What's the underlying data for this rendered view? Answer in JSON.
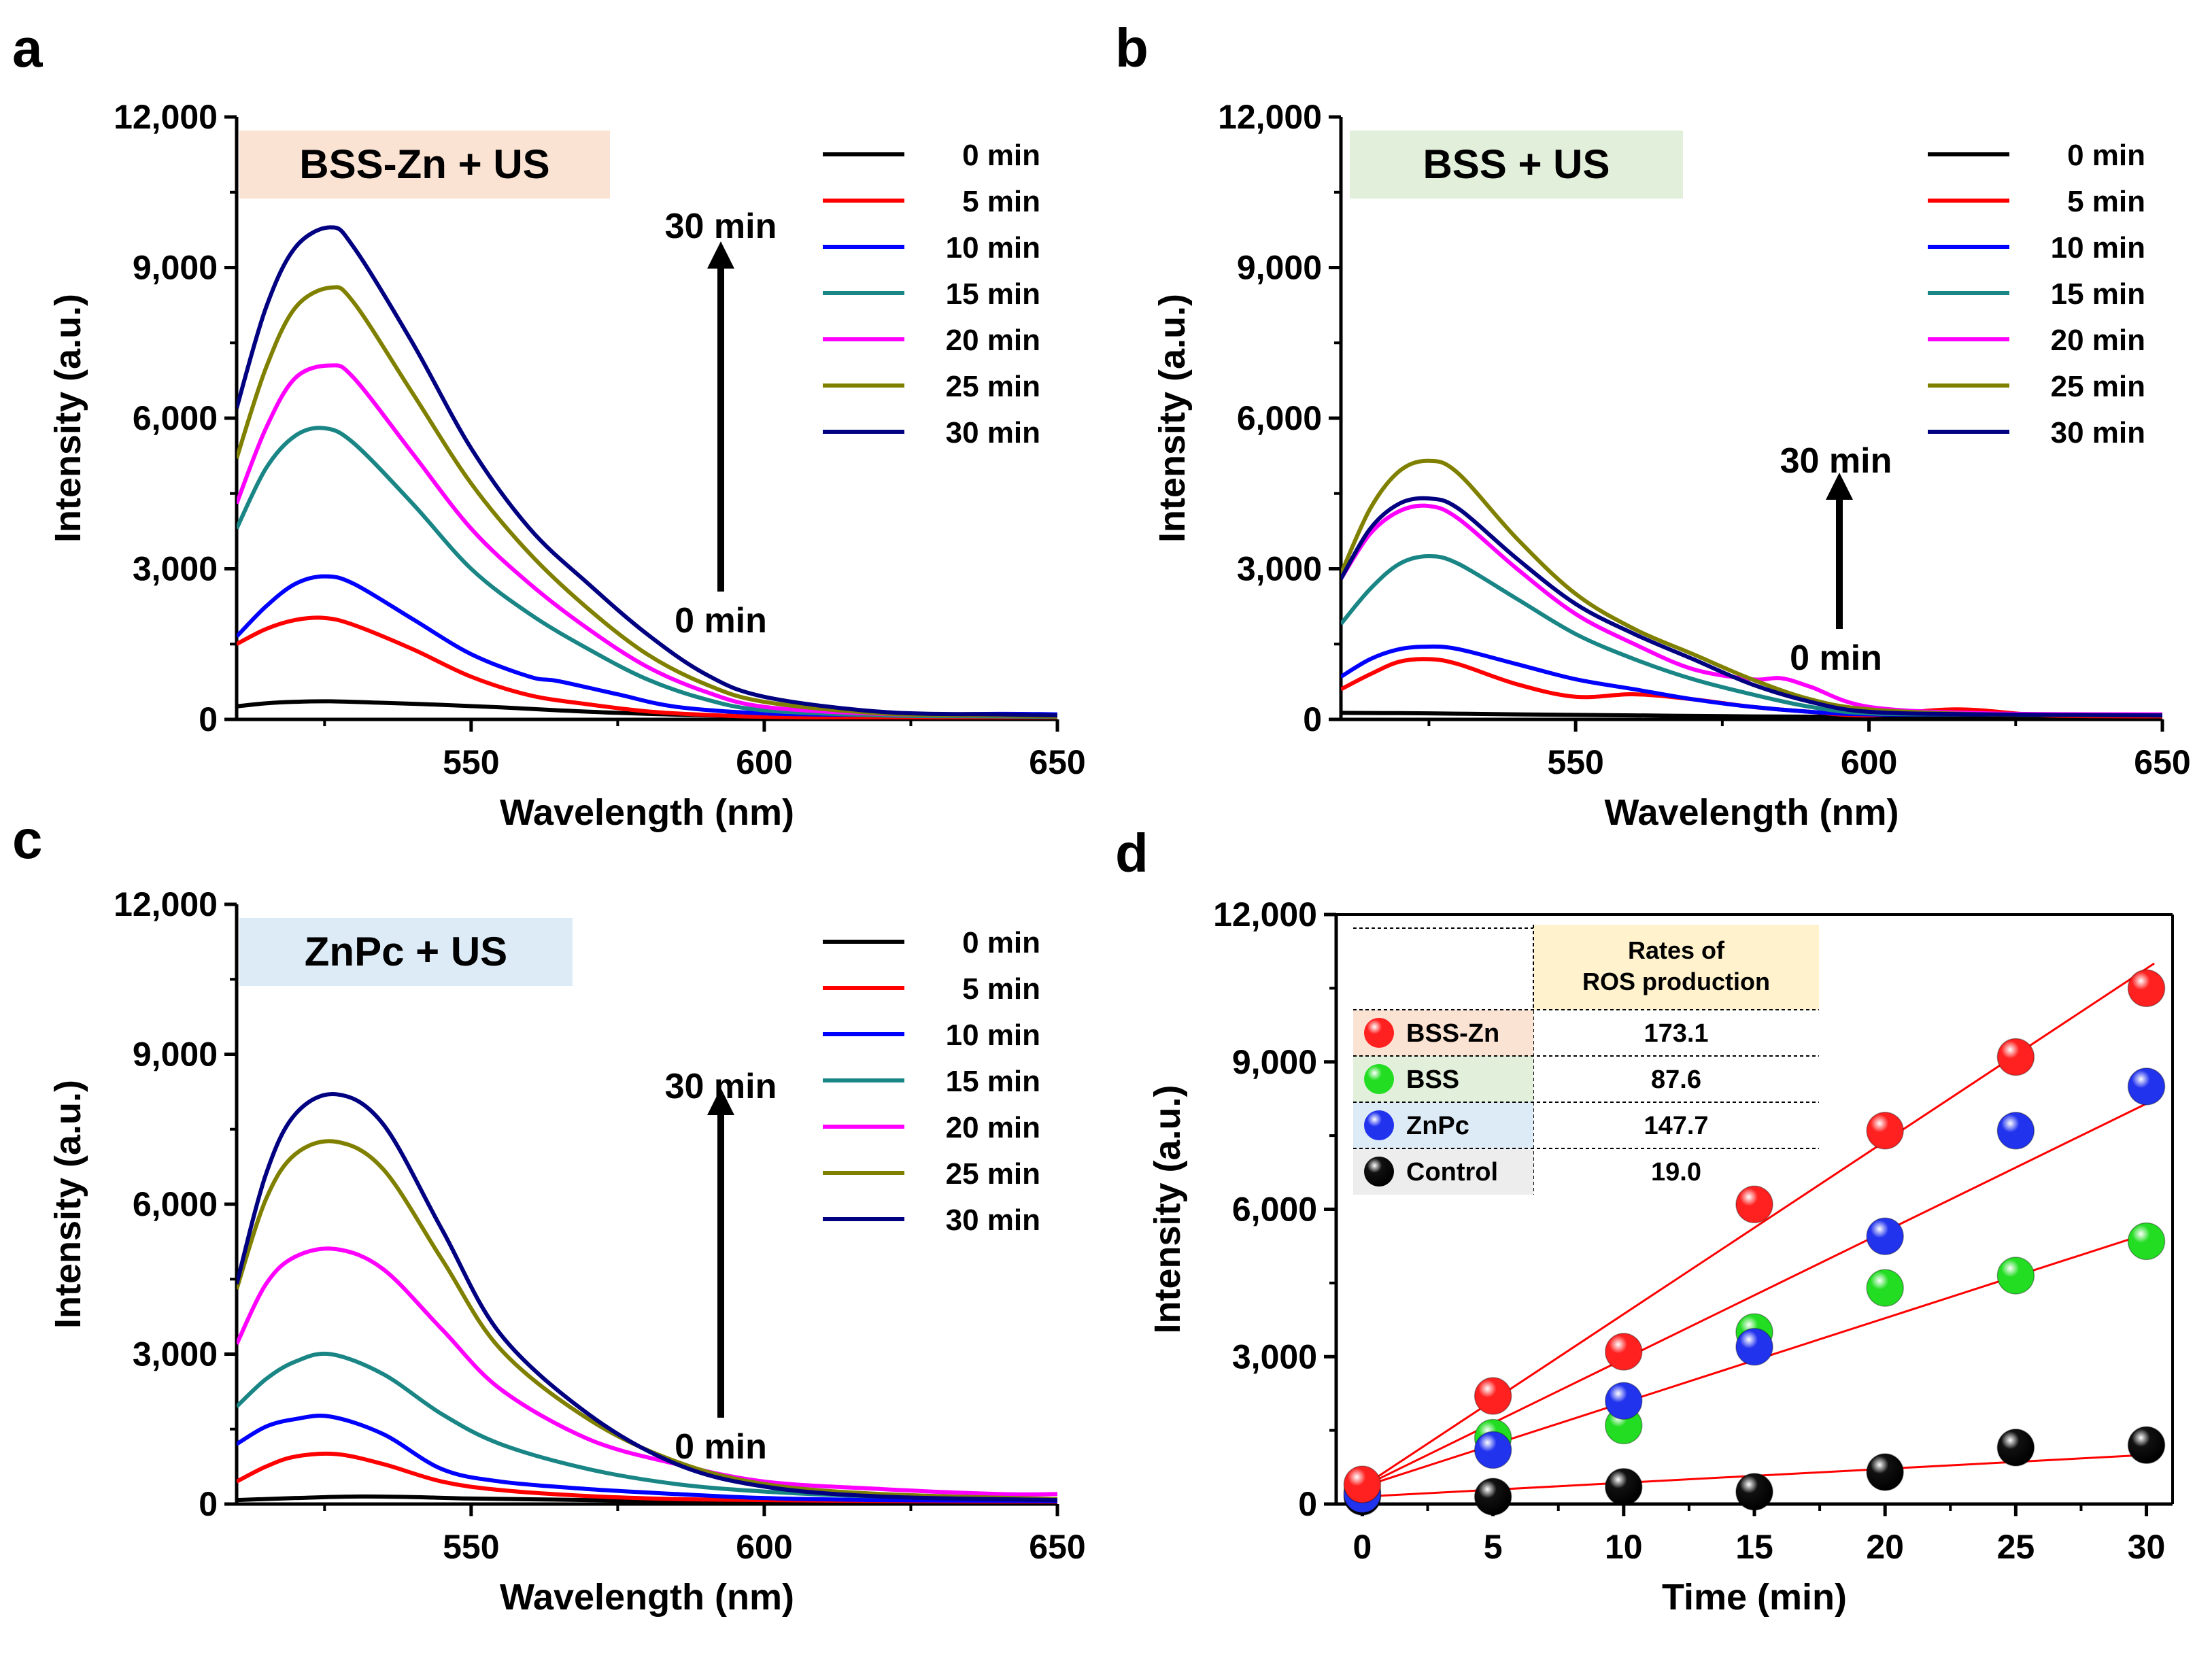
{
  "figure": {
    "panels": [
      "a",
      "b",
      "c",
      "d"
    ]
  },
  "chart_data": [
    {
      "id": "a",
      "type": "line",
      "title": "BSS-Zn + US",
      "title_bg": "#fbe3d4",
      "xlabel": "Wavelength (nm)",
      "ylabel": "Intensity (a.u.)",
      "xlim": [
        510,
        650
      ],
      "ylim": [
        0,
        12000
      ],
      "xticks": [
        550,
        600,
        650
      ],
      "yticks": [
        0,
        3000,
        6000,
        9000,
        12000
      ],
      "ytick_labels": [
        "0",
        "3,000",
        "6,000",
        "9,000",
        "12,000"
      ],
      "arrow_top_label": "30 min",
      "arrow_bottom_label": "0 min",
      "series": [
        {
          "name": "0 min",
          "color": "#000000",
          "x": [
            510,
            515,
            520,
            526,
            535,
            545,
            555,
            565,
            575,
            590,
            610,
            630,
            650
          ],
          "y": [
            260,
            320,
            350,
            360,
            330,
            290,
            240,
            180,
            130,
            80,
            50,
            40,
            30
          ]
        },
        {
          "name": "5 min",
          "color": "#ff0000",
          "x": [
            510,
            515,
            520,
            525,
            530,
            540,
            550,
            560,
            570,
            580,
            590,
            600,
            620,
            640,
            650
          ],
          "y": [
            1500,
            1800,
            1980,
            2020,
            1880,
            1400,
            850,
            480,
            300,
            160,
            90,
            50,
            30,
            20,
            20
          ]
        },
        {
          "name": "10 min",
          "color": "#0000ff",
          "x": [
            510,
            515,
            520,
            525,
            530,
            540,
            550,
            560,
            565,
            575,
            585,
            600,
            620,
            640,
            650
          ],
          "y": [
            1650,
            2250,
            2700,
            2850,
            2700,
            2000,
            1300,
            850,
            760,
            500,
            250,
            120,
            90,
            110,
            100
          ]
        },
        {
          "name": "15 min",
          "color": "#1a8585",
          "x": [
            510,
            515,
            520,
            525,
            530,
            540,
            550,
            560,
            570,
            580,
            590,
            600,
            620,
            640,
            650
          ],
          "y": [
            3800,
            5000,
            5650,
            5800,
            5500,
            4300,
            3000,
            2100,
            1400,
            800,
            400,
            180,
            80,
            60,
            50
          ]
        },
        {
          "name": "20 min",
          "color": "#ff00ff",
          "x": [
            510,
            515,
            520,
            526,
            530,
            540,
            550,
            560,
            570,
            580,
            590,
            600,
            620,
            640,
            650
          ],
          "y": [
            4300,
            5800,
            6800,
            7050,
            6800,
            5300,
            3800,
            2700,
            1800,
            1050,
            550,
            250,
            110,
            80,
            70
          ]
        },
        {
          "name": "25 min",
          "color": "#808000",
          "x": [
            510,
            515,
            520,
            526,
            530,
            540,
            550,
            560,
            570,
            580,
            590,
            600,
            620,
            640,
            650
          ],
          "y": [
            5200,
            7000,
            8200,
            8600,
            8300,
            6500,
            4700,
            3300,
            2200,
            1300,
            700,
            350,
            120,
            80,
            60
          ]
        },
        {
          "name": "30 min",
          "color": "#000080",
          "x": [
            510,
            515,
            520,
            526,
            530,
            540,
            550,
            560,
            570,
            580,
            590,
            600,
            620,
            640,
            650
          ],
          "y": [
            6200,
            8200,
            9400,
            9800,
            9400,
            7500,
            5400,
            3800,
            2700,
            1700,
            900,
            450,
            150,
            100,
            80
          ]
        }
      ]
    },
    {
      "id": "b",
      "type": "line",
      "title": "BSS + US",
      "title_bg": "#e2efda",
      "xlabel": "Wavelength (nm)",
      "ylabel": "Intensity (a.u.)",
      "xlim": [
        510,
        650
      ],
      "ylim": [
        0,
        12000
      ],
      "xticks": [
        550,
        600,
        650
      ],
      "yticks": [
        0,
        3000,
        6000,
        9000,
        12000
      ],
      "ytick_labels": [
        "0",
        "3,000",
        "6,000",
        "9,000",
        "12,000"
      ],
      "arrow_top_label": "30 min",
      "arrow_bottom_label": "0 min",
      "series": [
        {
          "name": "0 min",
          "color": "#000000",
          "x": [
            510,
            525,
            540,
            560,
            580,
            600,
            620,
            650
          ],
          "y": [
            130,
            120,
            100,
            80,
            60,
            50,
            40,
            30
          ]
        },
        {
          "name": "5 min",
          "color": "#ff0000",
          "x": [
            510,
            515,
            520,
            525,
            530,
            540,
            550,
            560,
            570,
            580,
            590,
            600,
            615,
            630,
            650
          ],
          "y": [
            600,
            900,
            1150,
            1200,
            1100,
            700,
            450,
            500,
            400,
            250,
            150,
            80,
            200,
            80,
            60
          ]
        },
        {
          "name": "10 min",
          "color": "#0000ff",
          "x": [
            510,
            515,
            520,
            525,
            530,
            540,
            550,
            560,
            570,
            580,
            590,
            600,
            620,
            650
          ],
          "y": [
            850,
            1200,
            1400,
            1450,
            1400,
            1100,
            800,
            600,
            400,
            250,
            150,
            100,
            100,
            80
          ]
        },
        {
          "name": "15 min",
          "color": "#1a8585",
          "x": [
            510,
            515,
            520,
            525,
            530,
            540,
            550,
            560,
            570,
            580,
            590,
            600,
            620,
            650
          ],
          "y": [
            1900,
            2600,
            3100,
            3250,
            3100,
            2400,
            1700,
            1200,
            800,
            500,
            250,
            120,
            100,
            80
          ]
        },
        {
          "name": "20 min",
          "color": "#ff00ff",
          "x": [
            510,
            515,
            520,
            525,
            530,
            540,
            550,
            560,
            570,
            580,
            585,
            590,
            600,
            620,
            650
          ],
          "y": [
            2800,
            3700,
            4150,
            4250,
            4000,
            3000,
            2100,
            1500,
            1000,
            800,
            820,
            650,
            250,
            120,
            100
          ]
        },
        {
          "name": "25 min",
          "color": "#808000",
          "x": [
            510,
            515,
            520,
            525,
            530,
            540,
            550,
            560,
            570,
            580,
            590,
            600,
            620,
            650
          ],
          "y": [
            2900,
            4200,
            4950,
            5150,
            4900,
            3600,
            2500,
            1800,
            1300,
            800,
            400,
            200,
            100,
            80
          ]
        },
        {
          "name": "30 min",
          "color": "#000080",
          "x": [
            510,
            515,
            520,
            525,
            530,
            540,
            550,
            560,
            570,
            580,
            590,
            600,
            620,
            650
          ],
          "y": [
            2800,
            3800,
            4300,
            4400,
            4200,
            3200,
            2300,
            1700,
            1200,
            700,
            350,
            150,
            100,
            80
          ]
        }
      ]
    },
    {
      "id": "c",
      "type": "line",
      "title": "ZnPc + US",
      "title_bg": "#ddebf7",
      "xlabel": "Wavelength (nm)",
      "ylabel": "Intensity (a.u.)",
      "xlim": [
        510,
        650
      ],
      "ylim": [
        0,
        12000
      ],
      "xticks": [
        550,
        600,
        650
      ],
      "yticks": [
        0,
        3000,
        6000,
        9000,
        12000
      ],
      "ytick_labels": [
        "0",
        "3,000",
        "6,000",
        "9,000",
        "12,000"
      ],
      "arrow_top_label": "30 min",
      "arrow_bottom_label": "0 min",
      "series": [
        {
          "name": "0 min",
          "color": "#000000",
          "x": [
            510,
            520,
            530,
            540,
            550,
            570,
            600,
            630,
            650
          ],
          "y": [
            80,
            120,
            150,
            140,
            110,
            80,
            50,
            40,
            30
          ]
        },
        {
          "name": "5 min",
          "color": "#ff0000",
          "x": [
            510,
            515,
            520,
            527,
            535,
            545,
            555,
            570,
            585,
            600,
            620,
            640,
            650
          ],
          "y": [
            450,
            750,
            950,
            1000,
            800,
            450,
            280,
            160,
            100,
            80,
            60,
            50,
            50
          ]
        },
        {
          "name": "10 min",
          "color": "#0000ff",
          "x": [
            510,
            515,
            520,
            526,
            535,
            545,
            555,
            570,
            585,
            600,
            620,
            650
          ],
          "y": [
            1200,
            1550,
            1700,
            1750,
            1400,
            700,
            450,
            300,
            200,
            120,
            80,
            60
          ]
        },
        {
          "name": "15 min",
          "color": "#1a8585",
          "x": [
            510,
            515,
            520,
            526,
            535,
            545,
            555,
            570,
            585,
            600,
            620,
            650
          ],
          "y": [
            1950,
            2500,
            2850,
            3000,
            2600,
            1800,
            1200,
            700,
            400,
            250,
            150,
            100
          ]
        },
        {
          "name": "20 min",
          "color": "#ff00ff",
          "x": [
            510,
            515,
            520,
            527,
            535,
            545,
            555,
            570,
            585,
            600,
            620,
            640,
            650
          ],
          "y": [
            3200,
            4400,
            4950,
            5100,
            4700,
            3500,
            2300,
            1300,
            800,
            450,
            300,
            200,
            200
          ]
        },
        {
          "name": "25 min",
          "color": "#808000",
          "x": [
            510,
            515,
            520,
            527,
            535,
            545,
            555,
            570,
            585,
            600,
            620,
            650
          ],
          "y": [
            4300,
            6100,
            7000,
            7250,
            6700,
            4900,
            3100,
            1700,
            850,
            400,
            200,
            100
          ]
        },
        {
          "name": "30 min",
          "color": "#000080",
          "x": [
            510,
            515,
            520,
            527,
            535,
            545,
            555,
            570,
            585,
            600,
            620,
            650
          ],
          "y": [
            4400,
            6600,
            7800,
            8200,
            7600,
            5500,
            3400,
            1800,
            800,
            350,
            150,
            80
          ]
        }
      ]
    },
    {
      "id": "d",
      "type": "scatter",
      "xlabel": "Time (min)",
      "ylabel": "Intensity (a.u.)",
      "xlim": [
        -1,
        31
      ],
      "ylim": [
        0,
        12000
      ],
      "xticks": [
        0,
        5,
        10,
        15,
        20,
        25,
        30
      ],
      "yticks": [
        0,
        3000,
        6000,
        9000,
        12000
      ],
      "ytick_labels": [
        "0",
        "3,000",
        "6,000",
        "9,000",
        "12,000"
      ],
      "fit_line_color": "#ff0000",
      "table": {
        "header": "Rates of\nROS production",
        "header_bg": "#fff2cc",
        "rows": [
          {
            "name": "BSS-Zn",
            "rate": "173.1",
            "bg": "#fbe3d4"
          },
          {
            "name": "BSS",
            "rate": "87.6",
            "bg": "#e2efda"
          },
          {
            "name": "ZnPc",
            "rate": "147.7",
            "bg": "#ddebf7"
          },
          {
            "name": "Control",
            "rate": "19.0",
            "bg": "#ededed"
          }
        ]
      },
      "series": [
        {
          "name": "BSS-Zn",
          "color": "#ff2020",
          "x": [
            0,
            5,
            10,
            15,
            20,
            25,
            30
          ],
          "y": [
            400,
            2200,
            3100,
            6100,
            7600,
            9100,
            10500
          ],
          "fit": [
            350,
            10900
          ]
        },
        {
          "name": "BSS",
          "color": "#22dd22",
          "x": [
            0,
            5,
            10,
            15,
            20,
            25,
            30
          ],
          "y": [
            250,
            1350,
            1600,
            3500,
            4400,
            4650,
            5350
          ],
          "fit": [
            350,
            5500
          ]
        },
        {
          "name": "ZnPc",
          "color": "#2233ee",
          "x": [
            0,
            5,
            10,
            15,
            20,
            25,
            30
          ],
          "y": [
            200,
            1100,
            2100,
            3200,
            5450,
            7600,
            8500
          ],
          "fit": [
            350,
            8150
          ]
        },
        {
          "name": "Control",
          "color": "#111111",
          "x": [
            0,
            5,
            10,
            15,
            20,
            25,
            30
          ],
          "y": [
            150,
            150,
            350,
            250,
            650,
            1150,
            1200
          ],
          "fit": [
            150,
            1000
          ]
        }
      ]
    }
  ]
}
